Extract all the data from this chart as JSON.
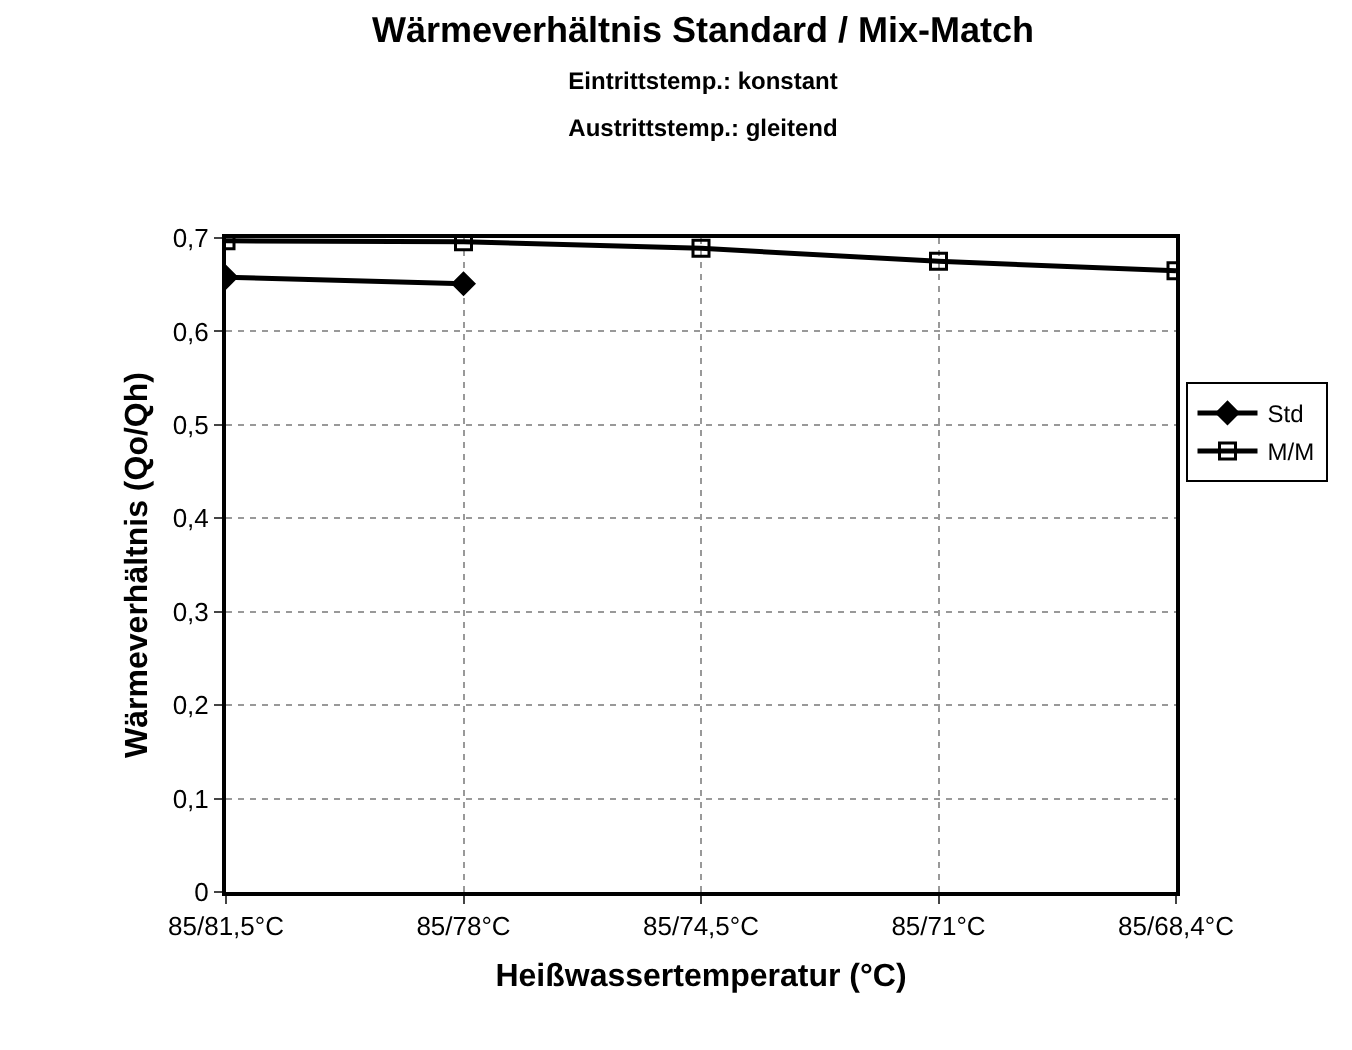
{
  "chart_data": {
    "type": "line",
    "title": "Wärmeverhältnis Standard / Mix-Match",
    "subtitle": "Eintrittstemp.: konstant\nAustrittstemp.: gleitend",
    "xlabel": "Heißwassertemperatur (°C)",
    "ylabel": "Wärmeverhältnis (Qo/Qh)",
    "categories": [
      "85/81,5°C",
      "85/78°C",
      "85/74,5°C",
      "85/71°C",
      "85/68,4°C"
    ],
    "series": [
      {
        "name": "Std",
        "color": "#000000",
        "marker": "diamond",
        "values": [
          0.658,
          0.651,
          null,
          null,
          null
        ]
      },
      {
        "name": "M/M",
        "color": "#000000",
        "marker": "square",
        "values": [
          0.697,
          0.696,
          0.689,
          0.675,
          0.665
        ]
      }
    ],
    "ylim": [
      0,
      0.7
    ],
    "yticks": [
      {
        "value": 0,
        "label": "0"
      },
      {
        "value": 0.1,
        "label": "0,1"
      },
      {
        "value": 0.2,
        "label": "0,2"
      },
      {
        "value": 0.3,
        "label": "0,3"
      },
      {
        "value": 0.4,
        "label": "0,4"
      },
      {
        "value": 0.5,
        "label": "0,5"
      },
      {
        "value": 0.6,
        "label": "0,6"
      },
      {
        "value": 0.7,
        "label": "0,7"
      }
    ],
    "grid": true,
    "legend": "right",
    "line_style": "solid"
  }
}
